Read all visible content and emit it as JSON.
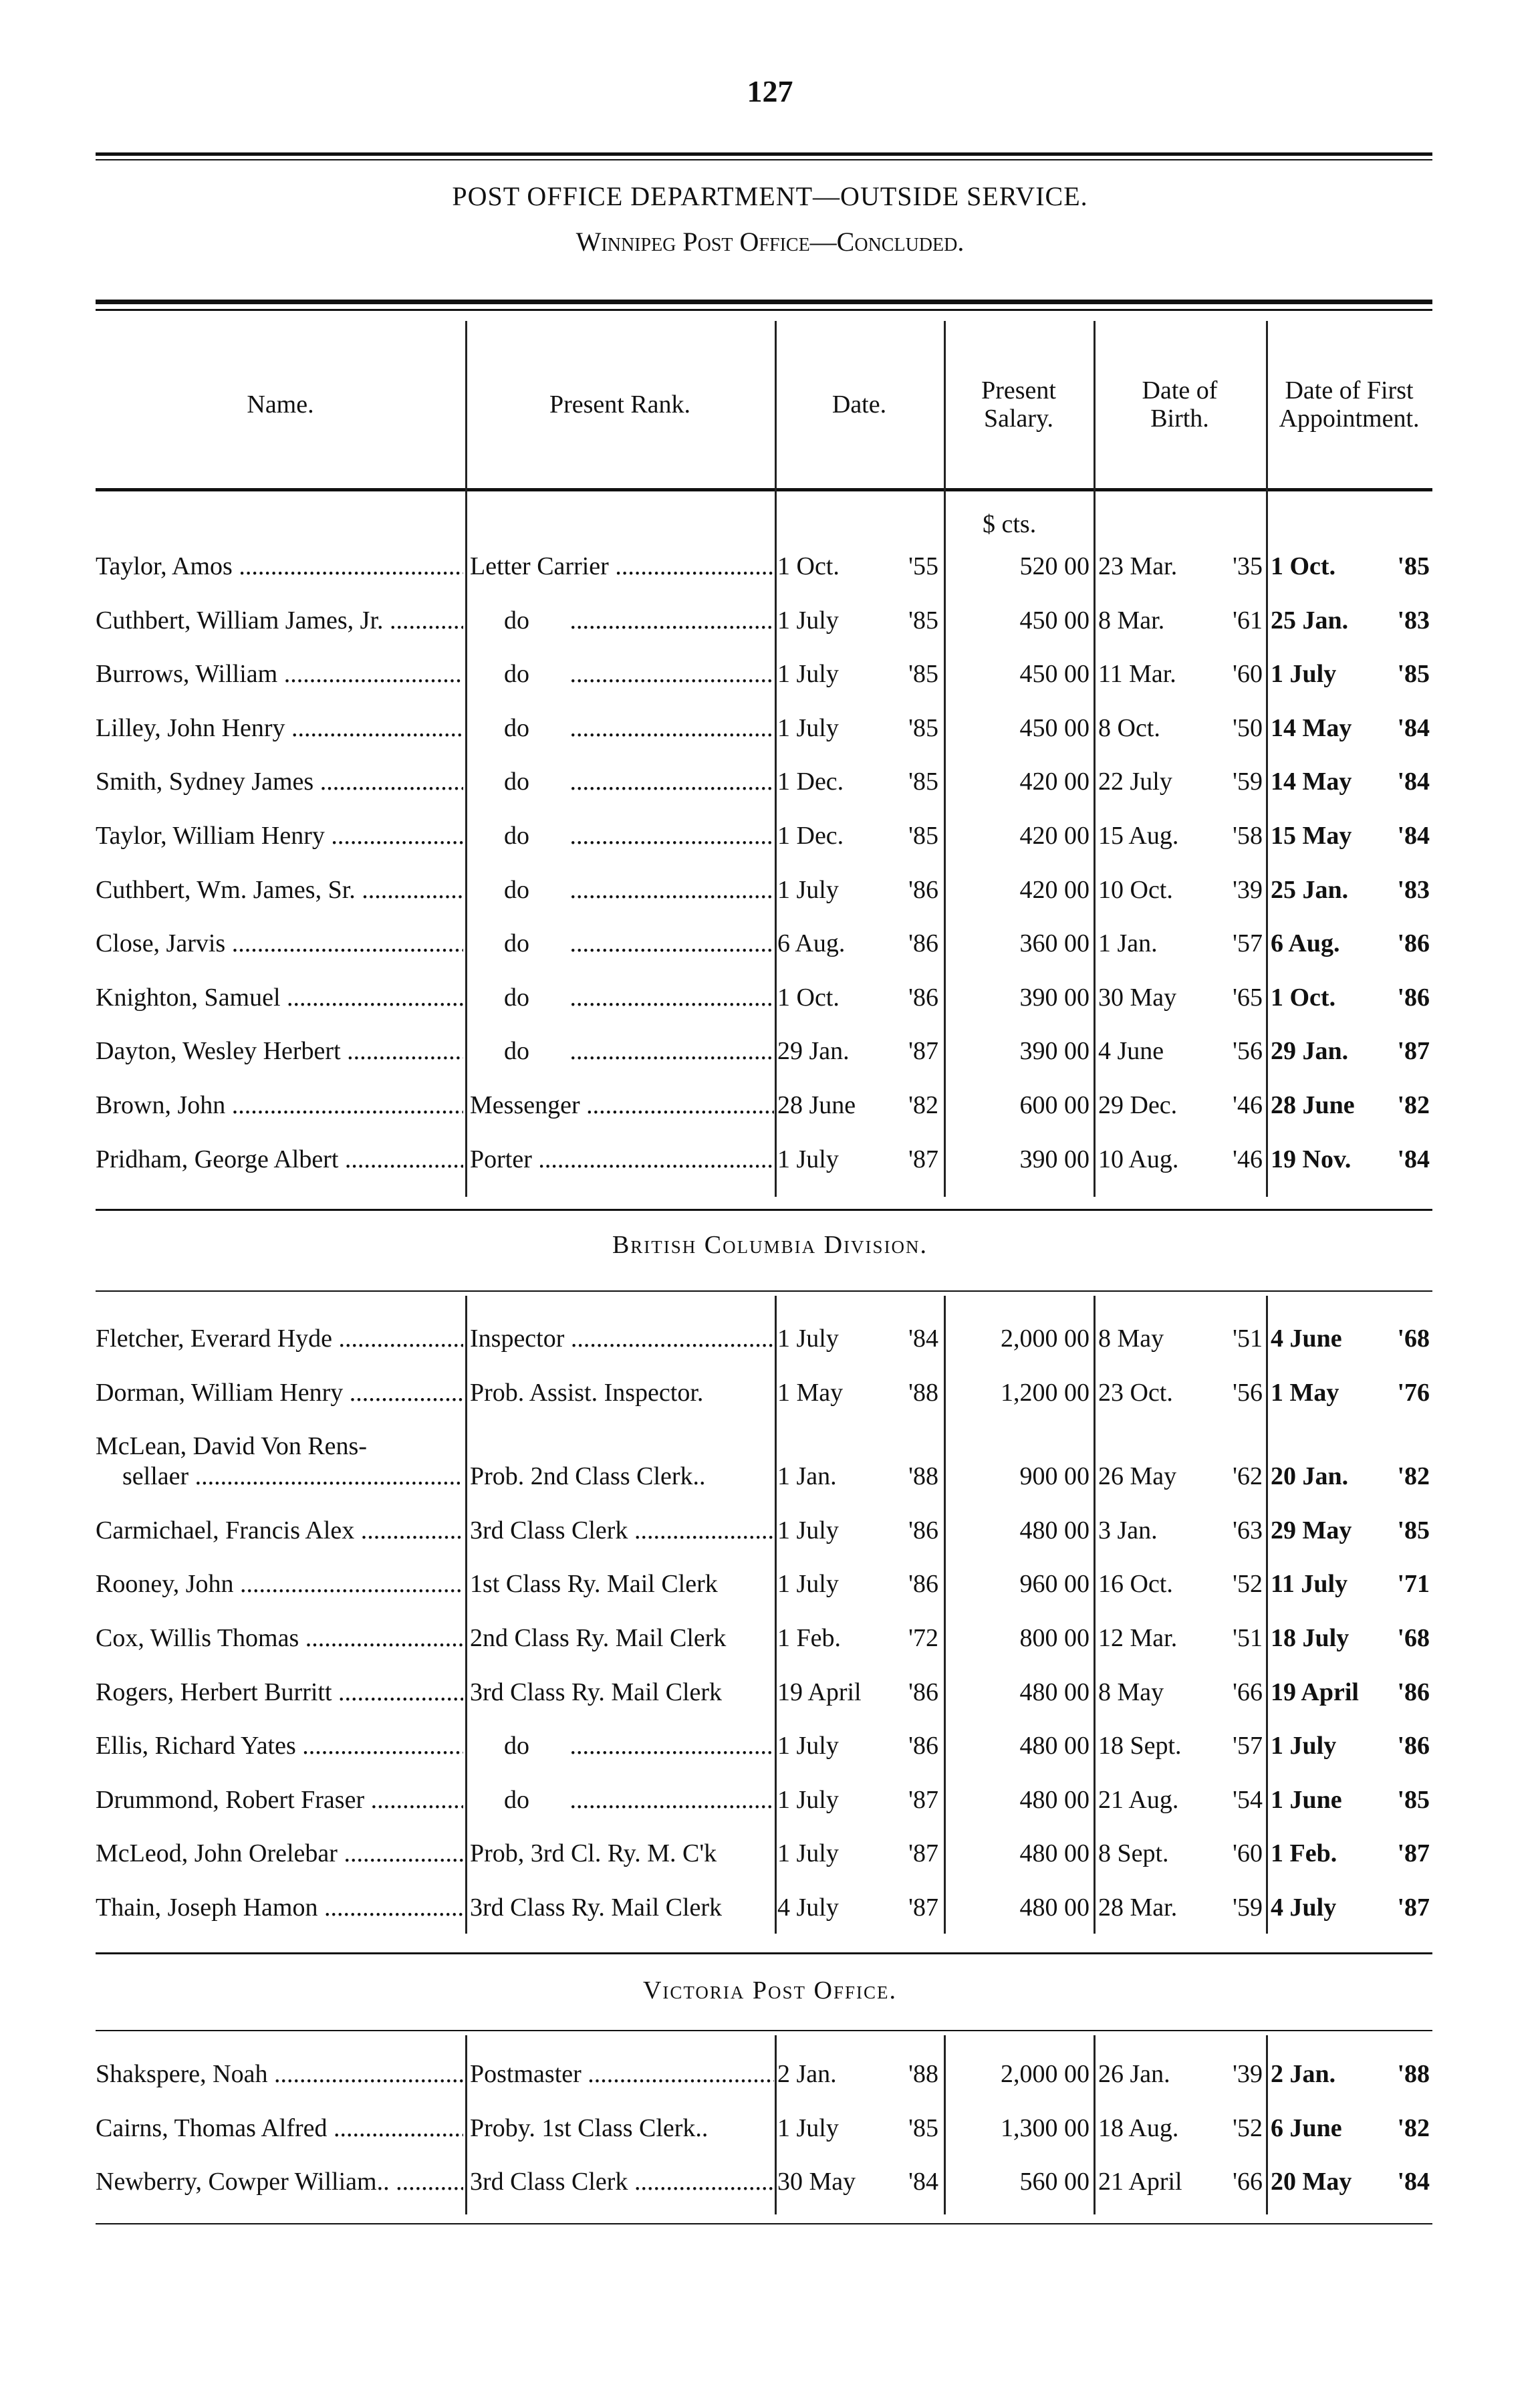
{
  "page_number": "127",
  "title": "POST OFFICE DEPARTMENT—OUTSIDE SERVICE.",
  "subtitle": "Winnipeg Post Office—Concluded.",
  "columns": [
    "Name.",
    "Present Rank.",
    "Date.",
    "Present Salary.",
    "Date of Birth.",
    "Date of First Appointment."
  ],
  "salary_units": "$  cts.",
  "sections": [
    {
      "heading": "",
      "rows": [
        {
          "name": "Taylor, Amos",
          "rank": "Letter Carrier",
          "date": "1 Oct.",
          "date_yr": "'55",
          "dollars": "520",
          "cents": "00",
          "birth": "23 Mar.",
          "birth_yr": "'35",
          "appt": "1 Oct.",
          "appt_yr": "'85"
        },
        {
          "name": "Cuthbert, William James, Jr.",
          "rank": "do",
          "date": "1 July",
          "date_yr": "'85",
          "dollars": "450",
          "cents": "00",
          "birth": "8 Mar.",
          "birth_yr": "'61",
          "appt": "25 Jan.",
          "appt_yr": "'83"
        },
        {
          "name": "Burrows, William",
          "rank": "do",
          "date": "1 July",
          "date_yr": "'85",
          "dollars": "450",
          "cents": "00",
          "birth": "11 Mar.",
          "birth_yr": "'60",
          "appt": "1 July",
          "appt_yr": "'85"
        },
        {
          "name": "Lilley, John Henry",
          "rank": "do",
          "date": "1 July",
          "date_yr": "'85",
          "dollars": "450",
          "cents": "00",
          "birth": "8 Oct.",
          "birth_yr": "'50",
          "appt": "14 May",
          "appt_yr": "'84"
        },
        {
          "name": "Smith, Sydney James",
          "rank": "do",
          "date": "1 Dec.",
          "date_yr": "'85",
          "dollars": "420",
          "cents": "00",
          "birth": "22 July",
          "birth_yr": "'59",
          "appt": "14 May",
          "appt_yr": "'84"
        },
        {
          "name": "Taylor, William Henry",
          "rank": "do",
          "date": "1 Dec.",
          "date_yr": "'85",
          "dollars": "420",
          "cents": "00",
          "birth": "15 Aug.",
          "birth_yr": "'58",
          "appt": "15 May",
          "appt_yr": "'84"
        },
        {
          "name": "Cuthbert, Wm. James, Sr.",
          "rank": "do",
          "date": "1 July",
          "date_yr": "'86",
          "dollars": "420",
          "cents": "00",
          "birth": "10 Oct.",
          "birth_yr": "'39",
          "appt": "25 Jan.",
          "appt_yr": "'83"
        },
        {
          "name": "Close, Jarvis",
          "rank": "do",
          "date": "6 Aug.",
          "date_yr": "'86",
          "dollars": "360",
          "cents": "00",
          "birth": "1 Jan.",
          "birth_yr": "'57",
          "appt": "6 Aug.",
          "appt_yr": "'86"
        },
        {
          "name": "Knighton, Samuel",
          "rank": "do",
          "date": "1 Oct.",
          "date_yr": "'86",
          "dollars": "390",
          "cents": "00",
          "birth": "30 May",
          "birth_yr": "'65",
          "appt": "1 Oct.",
          "appt_yr": "'86"
        },
        {
          "name": "Dayton, Wesley Herbert",
          "rank": "do",
          "date": "29 Jan.",
          "date_yr": "'87",
          "dollars": "390",
          "cents": "00",
          "birth": "4 June",
          "birth_yr": "'56",
          "appt": "29 Jan.",
          "appt_yr": "'87"
        },
        {
          "name": "Brown, John",
          "rank": "Messenger",
          "date": "28 June",
          "date_yr": "'82",
          "dollars": "600",
          "cents": "00",
          "birth": "29 Dec.",
          "birth_yr": "'46",
          "appt": "28 June",
          "appt_yr": "'82"
        },
        {
          "name": "Pridham, George Albert",
          "rank": "Porter",
          "date": "1 July",
          "date_yr": "'87",
          "dollars": "390",
          "cents": "00",
          "birth": "10 Aug.",
          "birth_yr": "'46",
          "appt": "19 Nov.",
          "appt_yr": "'84"
        }
      ]
    },
    {
      "heading": "British Columbia Division.",
      "rows": [
        {
          "name": "Fletcher, Everard Hyde",
          "rank": "Inspector",
          "date": "1 July",
          "date_yr": "'84",
          "dollars": "2,000",
          "cents": "00",
          "birth": "8 May",
          "birth_yr": "'51",
          "appt": "4 June",
          "appt_yr": "'68"
        },
        {
          "name": "Dorman, William Henry",
          "rank": "Prob. Assist. Inspector.",
          "date": "1 May",
          "date_yr": "'88",
          "dollars": "1,200",
          "cents": "00",
          "birth": "23 Oct.",
          "birth_yr": "'56",
          "appt": "1 May",
          "appt_yr": "'76"
        },
        {
          "name": "McLean, David Von Rens-",
          "name2": "sellaer",
          "rank": "Prob. 2nd Class Clerk..",
          "date": "1 Jan.",
          "date_yr": "'88",
          "dollars": "900",
          "cents": "00",
          "birth": "26 May",
          "birth_yr": "'62",
          "appt": "20 Jan.",
          "appt_yr": "'82"
        },
        {
          "name": "Carmichael, Francis Alex",
          "rank": "3rd Class Clerk",
          "date": "1 July",
          "date_yr": "'86",
          "dollars": "480",
          "cents": "00",
          "birth": "3 Jan.",
          "birth_yr": "'63",
          "appt": "29 May",
          "appt_yr": "'85"
        },
        {
          "name": "Rooney, John",
          "rank": "1st Class Ry. Mail Clerk",
          "date": "1 July",
          "date_yr": "'86",
          "dollars": "960",
          "cents": "00",
          "birth": "16 Oct.",
          "birth_yr": "'52",
          "appt": "11 July",
          "appt_yr": "'71"
        },
        {
          "name": "Cox, Willis Thomas",
          "rank": "2nd Class Ry. Mail Clerk",
          "date": "1 Feb.",
          "date_yr": "'72",
          "dollars": "800",
          "cents": "00",
          "birth": "12 Mar.",
          "birth_yr": "'51",
          "appt": "18 July",
          "appt_yr": "'68"
        },
        {
          "name": "Rogers, Herbert Burritt",
          "rank": "3rd Class Ry. Mail Clerk",
          "date": "19 April",
          "date_yr": "'86",
          "dollars": "480",
          "cents": "00",
          "birth": "8 May",
          "birth_yr": "'66",
          "appt": "19 April",
          "appt_yr": "'86"
        },
        {
          "name": "Ellis, Richard Yates",
          "rank": "do",
          "date": "1 July",
          "date_yr": "'86",
          "dollars": "480",
          "cents": "00",
          "birth": "18 Sept.",
          "birth_yr": "'57",
          "appt": "1 July",
          "appt_yr": "'86"
        },
        {
          "name": "Drummond, Robert Fraser",
          "rank": "do",
          "date": "1 July",
          "date_yr": "'87",
          "dollars": "480",
          "cents": "00",
          "birth": "21 Aug.",
          "birth_yr": "'54",
          "appt": "1 June",
          "appt_yr": "'85"
        },
        {
          "name": "McLeod, John Orelebar",
          "rank": "Prob, 3rd Cl. Ry. M. C'k",
          "date": "1 July",
          "date_yr": "'87",
          "dollars": "480",
          "cents": "00",
          "birth": "8 Sept.",
          "birth_yr": "'60",
          "appt": "1 Feb.",
          "appt_yr": "'87"
        },
        {
          "name": "Thain, Joseph Hamon",
          "rank": "3rd Class Ry. Mail Clerk",
          "date": "4 July",
          "date_yr": "'87",
          "dollars": "480",
          "cents": "00",
          "birth": "28 Mar.",
          "birth_yr": "'59",
          "appt": "4 July",
          "appt_yr": "'87"
        }
      ]
    },
    {
      "heading": "Victoria Post Office.",
      "rows": [
        {
          "name": "Shakspere, Noah",
          "rank": "Postmaster",
          "date": "2 Jan.",
          "date_yr": "'88",
          "dollars": "2,000",
          "cents": "00",
          "birth": "26 Jan.",
          "birth_yr": "'39",
          "appt": "2 Jan.",
          "appt_yr": "'88"
        },
        {
          "name": "Cairns, Thomas Alfred",
          "rank": "Proby. 1st Class Clerk..",
          "date": "1 July",
          "date_yr": "'85",
          "dollars": "1,300",
          "cents": "00",
          "birth": "18 Aug.",
          "birth_yr": "'52",
          "appt": "6 June",
          "appt_yr": "'82"
        },
        {
          "name": "Newberry, Cowper William..",
          "rank": "3rd Class Clerk",
          "date": "30 May",
          "date_yr": "'84",
          "dollars": "560",
          "cents": "00",
          "birth": "21 April",
          "birth_yr": "'66",
          "appt": "20 May",
          "appt_yr": "'84"
        }
      ]
    }
  ]
}
